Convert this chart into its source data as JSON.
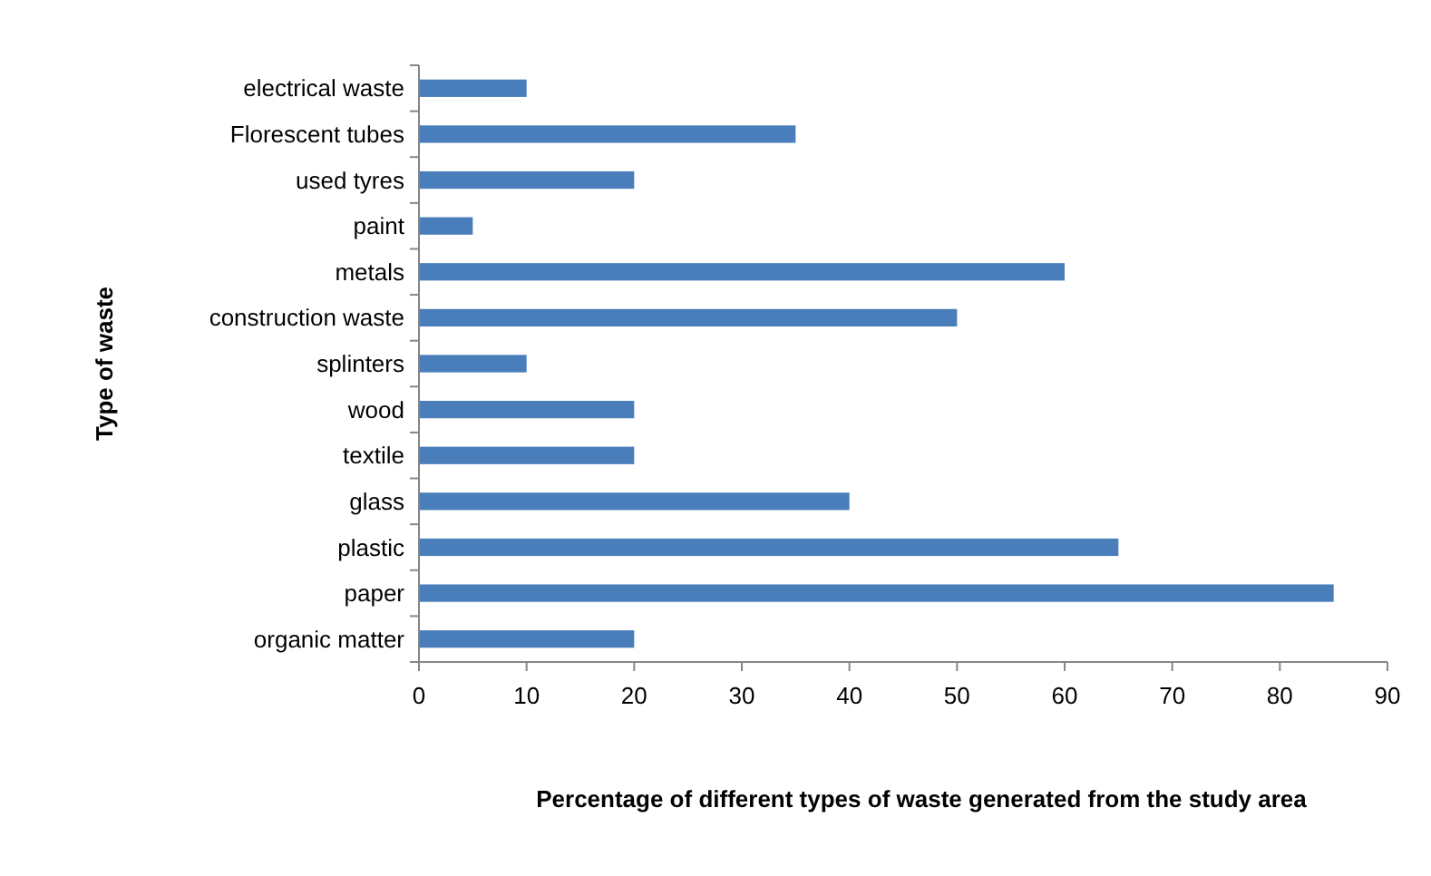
{
  "chart_data": {
    "type": "bar",
    "orientation": "horizontal",
    "xlabel": "Percentage of different types of waste generated from the study area",
    "ylabel": "Type of waste",
    "categories": [
      "electrical waste",
      "Florescent tubes",
      "used tyres",
      "paint",
      "metals",
      "construction waste",
      "splinters",
      "wood",
      "textile",
      "glass",
      "plastic",
      "paper",
      "organic matter"
    ],
    "values": [
      10,
      35,
      20,
      5,
      60,
      50,
      10,
      20,
      20,
      40,
      65,
      85,
      20
    ],
    "color": "#4a7ebb",
    "xlim": [
      0,
      90
    ],
    "xticks": [
      0,
      10,
      20,
      30,
      40,
      50,
      60,
      70,
      80,
      90
    ],
    "grid": false
  }
}
